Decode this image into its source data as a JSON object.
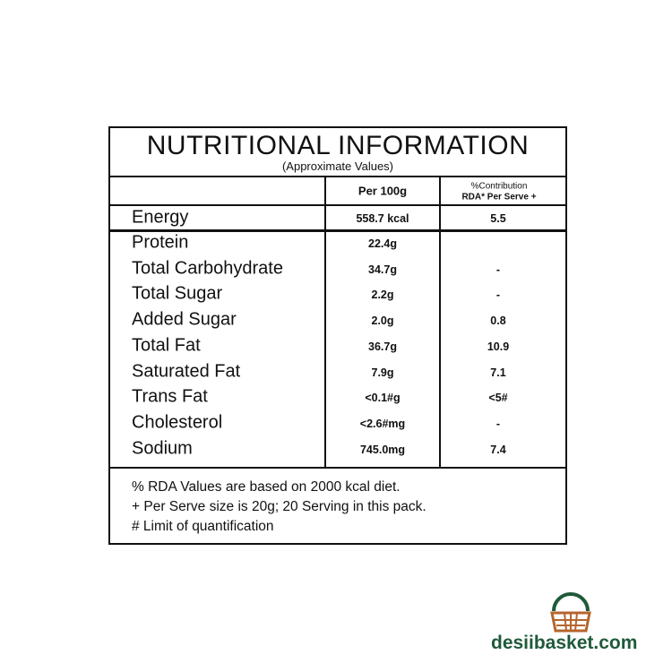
{
  "title": "NUTRITIONAL INFORMATION",
  "subtitle": "(Approximate Values)",
  "header": {
    "per100g": "Per 100g",
    "contribution": [
      "%Contribution",
      "RDA* Per Serve +"
    ]
  },
  "rows": [
    [
      "Energy",
      "558.7 kcal",
      "5.5"
    ],
    [
      "Protein",
      "22.4g"
    ],
    [
      "Total Carbohydrate",
      "34.7g",
      "-"
    ],
    [
      "Total Sugar",
      "2.2g",
      "-"
    ],
    [
      "Added Sugar",
      "2.0g",
      "0.8"
    ],
    [
      "Total Fat",
      "36.7g",
      "10.9"
    ],
    [
      "Saturated Fat",
      "7.9g",
      "7.1"
    ],
    [
      "Trans Fat",
      "<0.1#g",
      "<5#"
    ],
    [
      "Cholesterol",
      "<2.6#mg",
      "-"
    ],
    [
      "Sodium",
      "745.0mg",
      "7.4"
    ]
  ],
  "footnotes": [
    "% RDA Values are based on 2000 kcal diet.",
    "+ Per Serve size is 20g; 20 Serving in this pack.",
    "# Limit of quantification"
  ],
  "logo": {
    "text": "desiibasket.com"
  }
}
